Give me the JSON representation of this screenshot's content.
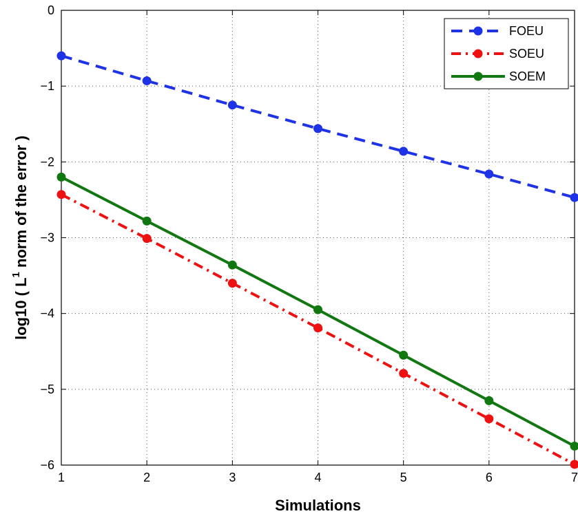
{
  "chart_data": {
    "type": "line",
    "title": "",
    "xlabel": "Simulations",
    "ylabel_main": "log10 ( L",
    "ylabel_sup": "1",
    "ylabel_rest": " norm of the error )",
    "xlim": [
      1,
      7
    ],
    "ylim": [
      -6,
      0
    ],
    "xticks": [
      "1",
      "2",
      "3",
      "4",
      "5",
      "6",
      "7"
    ],
    "yticks": [
      "0",
      "−1",
      "−2",
      "−3",
      "−4",
      "−5",
      "−6"
    ],
    "grid": true,
    "legend_position": "top-right",
    "x": [
      1,
      2,
      3,
      4,
      5,
      6,
      7
    ],
    "series": [
      {
        "name": "FOEU",
        "color": "#1f33e6",
        "dash": "dashed",
        "values": [
          -0.6,
          -0.93,
          -1.25,
          -1.56,
          -1.86,
          -2.16,
          -2.47
        ]
      },
      {
        "name": "SOEU",
        "color": "#ee1111",
        "dash": "dashdot",
        "values": [
          -2.43,
          -3.01,
          -3.6,
          -4.19,
          -4.79,
          -5.39,
          -5.99
        ]
      },
      {
        "name": "SOEM",
        "color": "#117711",
        "dash": "solid",
        "values": [
          -2.2,
          -2.78,
          -3.36,
          -3.95,
          -4.55,
          -5.15,
          -5.75
        ]
      }
    ]
  }
}
